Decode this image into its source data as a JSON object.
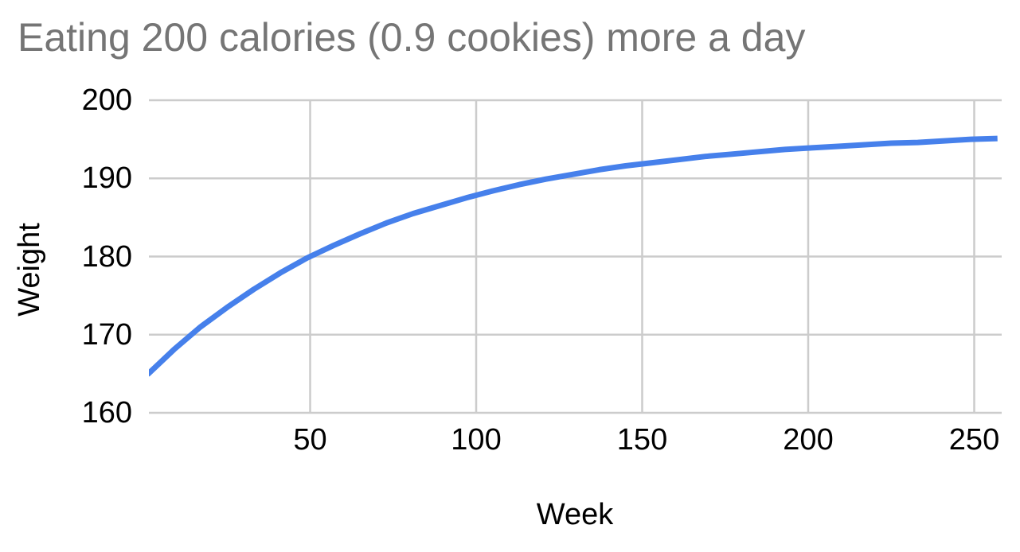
{
  "chart_data": {
    "type": "line",
    "title": "Eating 200 calories (0.9 cookies) more a day",
    "xlabel": "Week",
    "ylabel": "Weight",
    "xlim": [
      0,
      258
    ],
    "ylim": [
      160,
      200
    ],
    "x_ticks": [
      50,
      100,
      150,
      200,
      250
    ],
    "y_ticks": [
      160,
      170,
      180,
      190,
      200
    ],
    "grid": true,
    "legend": false,
    "style": {
      "line_color": "#4680eb",
      "gridline_color": "#cccccc",
      "title_color": "#757575",
      "axis_text_color": "#000000",
      "background_color": "#ffffff"
    },
    "series": [
      {
        "name": "Weight",
        "x": [
          1,
          9,
          17,
          25,
          33,
          41,
          49,
          57,
          65,
          73,
          81,
          89,
          97,
          105,
          113,
          121,
          129,
          137,
          145,
          153,
          161,
          169,
          177,
          185,
          193,
          201,
          209,
          217,
          225,
          233,
          241,
          249,
          257
        ],
        "y": [
          164.9,
          168.1,
          171.0,
          173.5,
          175.8,
          177.9,
          179.8,
          181.4,
          182.9,
          184.3,
          185.5,
          186.5,
          187.5,
          188.4,
          189.2,
          189.9,
          190.5,
          191.1,
          191.6,
          192.0,
          192.4,
          192.8,
          193.1,
          193.4,
          193.7,
          193.9,
          194.1,
          194.3,
          194.5,
          194.6,
          194.8,
          195.0,
          195.1
        ]
      }
    ]
  }
}
